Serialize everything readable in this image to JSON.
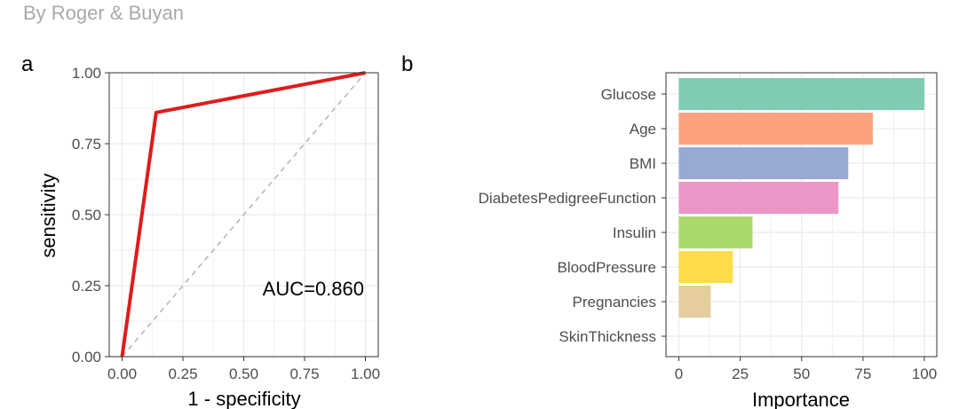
{
  "header": {
    "byline": "By Roger & Buyan"
  },
  "colors": {
    "roc_line": "#e01b1b",
    "diagonal": "#b8b8b8",
    "grid": "#ebebeb",
    "axis": "#333333",
    "tick_text": "#4d4d4d"
  },
  "chart_data": [
    {
      "panel_label": "a",
      "type": "line",
      "title": "",
      "xlabel": "1 - specificity",
      "ylabel": "sensitivity",
      "xlim": [
        0,
        1
      ],
      "ylim": [
        0,
        1
      ],
      "x_ticks": [
        "0.00",
        "0.25",
        "0.50",
        "0.75",
        "1.00"
      ],
      "y_ticks": [
        "0.00",
        "0.25",
        "0.50",
        "0.75",
        "1.00"
      ],
      "series": [
        {
          "name": "ROC",
          "x": [
            0,
            0.14,
            1
          ],
          "y": [
            0,
            0.86,
            1
          ]
        },
        {
          "name": "reference",
          "x": [
            0,
            1
          ],
          "y": [
            0,
            1
          ]
        }
      ],
      "annotation": "AUC=0.860",
      "grid": true
    },
    {
      "panel_label": "b",
      "type": "bar",
      "orientation": "horizontal",
      "title": "",
      "xlabel": "Importance",
      "ylabel": "",
      "xlim": [
        0,
        100
      ],
      "x_ticks": [
        "0",
        "25",
        "50",
        "75",
        "100"
      ],
      "categories": [
        "Glucose",
        "Age",
        "BMI",
        "DiabetesPedigreeFunction",
        "Insulin",
        "BloodPressure",
        "Pregnancies",
        "SkinThickness"
      ],
      "values": [
        100,
        79,
        69,
        65,
        30,
        22,
        13,
        0
      ],
      "bar_colors": [
        "#7fcdb0",
        "#fca17d",
        "#98a9d3",
        "#ec96c8",
        "#abd86a",
        "#fedb4a",
        "#e6cda0",
        "#bdbdbd"
      ],
      "grid": true
    }
  ]
}
